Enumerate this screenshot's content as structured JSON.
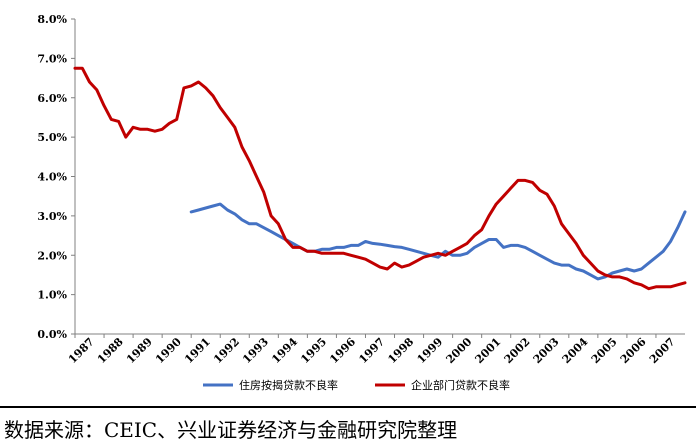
{
  "chart_data": {
    "type": "line",
    "y_ticks": [
      "0.0%",
      "1.0%",
      "2.0%",
      "3.0%",
      "4.0%",
      "5.0%",
      "6.0%",
      "7.0%",
      "8.0%"
    ],
    "x_ticks": [
      "1987",
      "1988",
      "1989",
      "1990",
      "1991",
      "1992",
      "1993",
      "1994",
      "1995",
      "1996",
      "1997",
      "1998",
      "1999",
      "2000",
      "2001",
      "2002",
      "2003",
      "2004",
      "2005",
      "2006",
      "2007"
    ],
    "xlim": [
      1987,
      2008
    ],
    "ylim": [
      0,
      8
    ],
    "grid": false,
    "legend_placement": "bottom",
    "series": [
      {
        "name": "住房按揭贷款不良率",
        "color": "#4472C4",
        "points": [
          [
            1991.0,
            3.1
          ],
          [
            1991.25,
            3.15
          ],
          [
            1991.5,
            3.2
          ],
          [
            1991.75,
            3.25
          ],
          [
            1992.0,
            3.3
          ],
          [
            1992.25,
            3.15
          ],
          [
            1992.5,
            3.05
          ],
          [
            1992.75,
            2.9
          ],
          [
            1993.0,
            2.8
          ],
          [
            1993.25,
            2.8
          ],
          [
            1993.5,
            2.7
          ],
          [
            1993.75,
            2.6
          ],
          [
            1994.0,
            2.5
          ],
          [
            1994.25,
            2.4
          ],
          [
            1994.5,
            2.3
          ],
          [
            1994.75,
            2.2
          ],
          [
            1995.0,
            2.1
          ],
          [
            1995.25,
            2.1
          ],
          [
            1995.5,
            2.15
          ],
          [
            1995.75,
            2.15
          ],
          [
            1996.0,
            2.2
          ],
          [
            1996.25,
            2.2
          ],
          [
            1996.5,
            2.25
          ],
          [
            1996.75,
            2.25
          ],
          [
            1997.0,
            2.35
          ],
          [
            1997.25,
            2.3
          ],
          [
            1997.5,
            2.28
          ],
          [
            1997.75,
            2.25
          ],
          [
            1998.0,
            2.22
          ],
          [
            1998.25,
            2.2
          ],
          [
            1998.5,
            2.15
          ],
          [
            1998.75,
            2.1
          ],
          [
            1999.0,
            2.05
          ],
          [
            1999.25,
            2.0
          ],
          [
            1999.5,
            1.95
          ],
          [
            1999.75,
            2.1
          ],
          [
            2000.0,
            2.0
          ],
          [
            2000.25,
            2.0
          ],
          [
            2000.5,
            2.05
          ],
          [
            2000.75,
            2.2
          ],
          [
            2001.0,
            2.3
          ],
          [
            2001.25,
            2.4
          ],
          [
            2001.5,
            2.4
          ],
          [
            2001.75,
            2.2
          ],
          [
            2002.0,
            2.25
          ],
          [
            2002.25,
            2.25
          ],
          [
            2002.5,
            2.2
          ],
          [
            2002.75,
            2.1
          ],
          [
            2003.0,
            2.0
          ],
          [
            2003.25,
            1.9
          ],
          [
            2003.5,
            1.8
          ],
          [
            2003.75,
            1.75
          ],
          [
            2004.0,
            1.75
          ],
          [
            2004.25,
            1.65
          ],
          [
            2004.5,
            1.6
          ],
          [
            2004.75,
            1.5
          ],
          [
            2005.0,
            1.4
          ],
          [
            2005.25,
            1.45
          ],
          [
            2005.5,
            1.55
          ],
          [
            2005.75,
            1.6
          ],
          [
            2006.0,
            1.65
          ],
          [
            2006.25,
            1.6
          ],
          [
            2006.5,
            1.65
          ],
          [
            2006.75,
            1.8
          ],
          [
            2007.0,
            1.95
          ],
          [
            2007.25,
            2.1
          ],
          [
            2007.5,
            2.35
          ],
          [
            2007.75,
            2.7
          ],
          [
            2008.0,
            3.1
          ]
        ]
      },
      {
        "name": "企业部门贷款不良率",
        "color": "#C00000",
        "points": [
          [
            1987.0,
            6.75
          ],
          [
            1987.25,
            6.75
          ],
          [
            1987.5,
            6.4
          ],
          [
            1987.75,
            6.2
          ],
          [
            1988.0,
            5.8
          ],
          [
            1988.25,
            5.45
          ],
          [
            1988.5,
            5.4
          ],
          [
            1988.75,
            5.0
          ],
          [
            1989.0,
            5.25
          ],
          [
            1989.25,
            5.2
          ],
          [
            1989.5,
            5.2
          ],
          [
            1989.75,
            5.15
          ],
          [
            1990.0,
            5.2
          ],
          [
            1990.25,
            5.35
          ],
          [
            1990.5,
            5.45
          ],
          [
            1990.75,
            6.25
          ],
          [
            1991.0,
            6.3
          ],
          [
            1991.25,
            6.4
          ],
          [
            1991.5,
            6.25
          ],
          [
            1991.75,
            6.05
          ],
          [
            1992.0,
            5.75
          ],
          [
            1992.25,
            5.5
          ],
          [
            1992.5,
            5.25
          ],
          [
            1992.75,
            4.75
          ],
          [
            1993.0,
            4.4
          ],
          [
            1993.25,
            4.0
          ],
          [
            1993.5,
            3.6
          ],
          [
            1993.75,
            3.0
          ],
          [
            1994.0,
            2.8
          ],
          [
            1994.25,
            2.4
          ],
          [
            1994.5,
            2.2
          ],
          [
            1994.75,
            2.2
          ],
          [
            1995.0,
            2.1
          ],
          [
            1995.25,
            2.1
          ],
          [
            1995.5,
            2.05
          ],
          [
            1995.75,
            2.05
          ],
          [
            1996.0,
            2.05
          ],
          [
            1996.25,
            2.05
          ],
          [
            1996.5,
            2.0
          ],
          [
            1996.75,
            1.95
          ],
          [
            1997.0,
            1.9
          ],
          [
            1997.25,
            1.8
          ],
          [
            1997.5,
            1.7
          ],
          [
            1997.75,
            1.65
          ],
          [
            1998.0,
            1.8
          ],
          [
            1998.25,
            1.7
          ],
          [
            1998.5,
            1.75
          ],
          [
            1998.75,
            1.85
          ],
          [
            1999.0,
            1.95
          ],
          [
            1999.25,
            2.0
          ],
          [
            1999.5,
            2.05
          ],
          [
            1999.75,
            2.0
          ],
          [
            2000.0,
            2.1
          ],
          [
            2000.25,
            2.2
          ],
          [
            2000.5,
            2.3
          ],
          [
            2000.75,
            2.5
          ],
          [
            2001.0,
            2.65
          ],
          [
            2001.25,
            3.0
          ],
          [
            2001.5,
            3.3
          ],
          [
            2001.75,
            3.5
          ],
          [
            2002.0,
            3.7
          ],
          [
            2002.25,
            3.9
          ],
          [
            2002.5,
            3.9
          ],
          [
            2002.75,
            3.85
          ],
          [
            2003.0,
            3.65
          ],
          [
            2003.25,
            3.55
          ],
          [
            2003.5,
            3.25
          ],
          [
            2003.75,
            2.8
          ],
          [
            2004.0,
            2.55
          ],
          [
            2004.25,
            2.3
          ],
          [
            2004.5,
            2.0
          ],
          [
            2004.75,
            1.8
          ],
          [
            2005.0,
            1.6
          ],
          [
            2005.25,
            1.5
          ],
          [
            2005.5,
            1.45
          ],
          [
            2005.75,
            1.45
          ],
          [
            2006.0,
            1.4
          ],
          [
            2006.25,
            1.3
          ],
          [
            2006.5,
            1.25
          ],
          [
            2006.75,
            1.15
          ],
          [
            2007.0,
            1.2
          ],
          [
            2007.25,
            1.2
          ],
          [
            2007.5,
            1.2
          ],
          [
            2007.75,
            1.25
          ],
          [
            2008.0,
            1.3
          ]
        ]
      }
    ]
  },
  "source": "数据来源：CEIC、兴业证券经济与金融研究院整理"
}
